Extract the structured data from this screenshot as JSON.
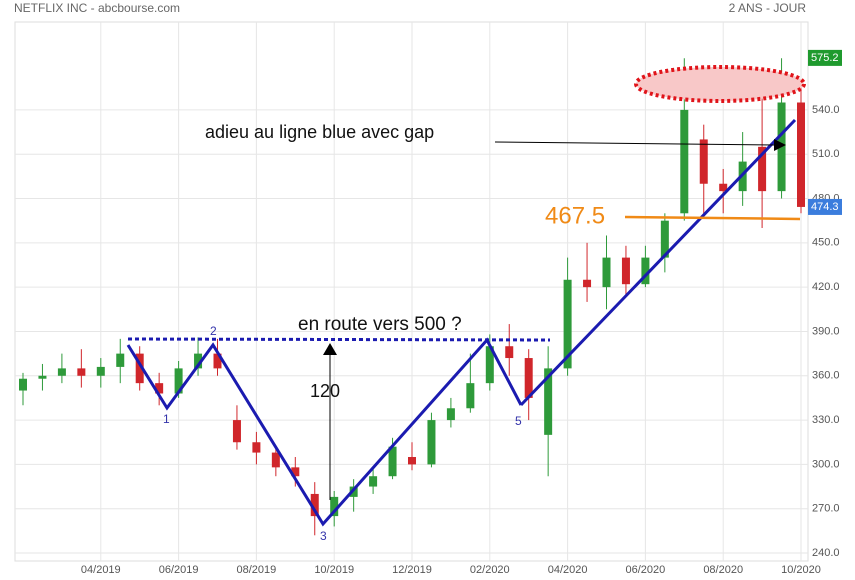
{
  "chart_data": {
    "type": "candlestick",
    "title": "NETFLIX INC - abcbourse.com",
    "subtitle": "2 ANS - JOUR",
    "categories": [
      null,
      null,
      null,
      null,
      "04/2019",
      null,
      null,
      null,
      "06/2019",
      null,
      null,
      null,
      "08/2019",
      null,
      null,
      null,
      "10/2019",
      null,
      null,
      null,
      "12/2019",
      null,
      null,
      null,
      "02/2020",
      null,
      null,
      null,
      "04/2020",
      null,
      null,
      null,
      "06/2020",
      null,
      null,
      null,
      "08/2020",
      null,
      null,
      null,
      "10/2020"
    ],
    "open": [
      350,
      358,
      360,
      365,
      360,
      366,
      375,
      355,
      348,
      365,
      375,
      330,
      315,
      308,
      298,
      280,
      265,
      278,
      285,
      292,
      305,
      300,
      330,
      338,
      355,
      380,
      372,
      320,
      365,
      425,
      420,
      440,
      422,
      440,
      470,
      520,
      490,
      485,
      515,
      485,
      545
    ],
    "high": [
      362,
      368,
      375,
      378,
      372,
      385,
      380,
      362,
      370,
      386,
      385,
      340,
      322,
      312,
      305,
      288,
      282,
      290,
      298,
      318,
      315,
      335,
      345,
      375,
      388,
      395,
      378,
      380,
      440,
      450,
      455,
      448,
      448,
      470,
      575,
      530,
      500,
      525,
      560,
      575,
      555
    ],
    "low": [
      340,
      350,
      355,
      352,
      352,
      355,
      350,
      340,
      345,
      360,
      360,
      310,
      300,
      292,
      285,
      252,
      258,
      268,
      280,
      290,
      296,
      298,
      325,
      335,
      350,
      360,
      330,
      292,
      360,
      410,
      405,
      415,
      420,
      430,
      465,
      470,
      470,
      475,
      460,
      480,
      470
    ],
    "close": [
      358,
      360,
      365,
      360,
      366,
      375,
      355,
      348,
      365,
      375,
      365,
      315,
      308,
      298,
      292,
      265,
      278,
      285,
      292,
      312,
      300,
      330,
      338,
      355,
      380,
      372,
      345,
      365,
      425,
      420,
      440,
      422,
      440,
      465,
      540,
      490,
      485,
      505,
      485,
      545,
      474.3
    ],
    "up_color": "#2e9a3a",
    "down_color": "#d0262b",
    "ylim": [
      234.6,
      599.5
    ],
    "yticks": [
      {
        "value": 240,
        "label": "240.0"
      },
      {
        "value": 270,
        "label": "270.0"
      },
      {
        "value": 300,
        "label": "300.0"
      },
      {
        "value": 330,
        "label": "330.0"
      },
      {
        "value": 360,
        "label": "360.0"
      },
      {
        "value": 390,
        "label": "390.0"
      },
      {
        "value": 420,
        "label": "420.0"
      },
      {
        "value": 450,
        "label": "450.0"
      },
      {
        "value": 480,
        "label": "480.0"
      },
      {
        "value": 510,
        "label": "510.0"
      },
      {
        "value": 540,
        "label": "540.0"
      }
    ],
    "grid": true,
    "price_tags": [
      {
        "value": 575.2,
        "color": "#1f9a2e"
      },
      {
        "value": 474.3,
        "color": "#3b7ddd"
      }
    ],
    "level_line": {
      "value": 467.5,
      "color": "#f08a16"
    },
    "annotations": {
      "gap": "adieu au ligne blue avec gap",
      "target": "en route vers 500 ?",
      "height": "120",
      "points": [
        "1",
        "2",
        "3",
        "5"
      ]
    }
  }
}
